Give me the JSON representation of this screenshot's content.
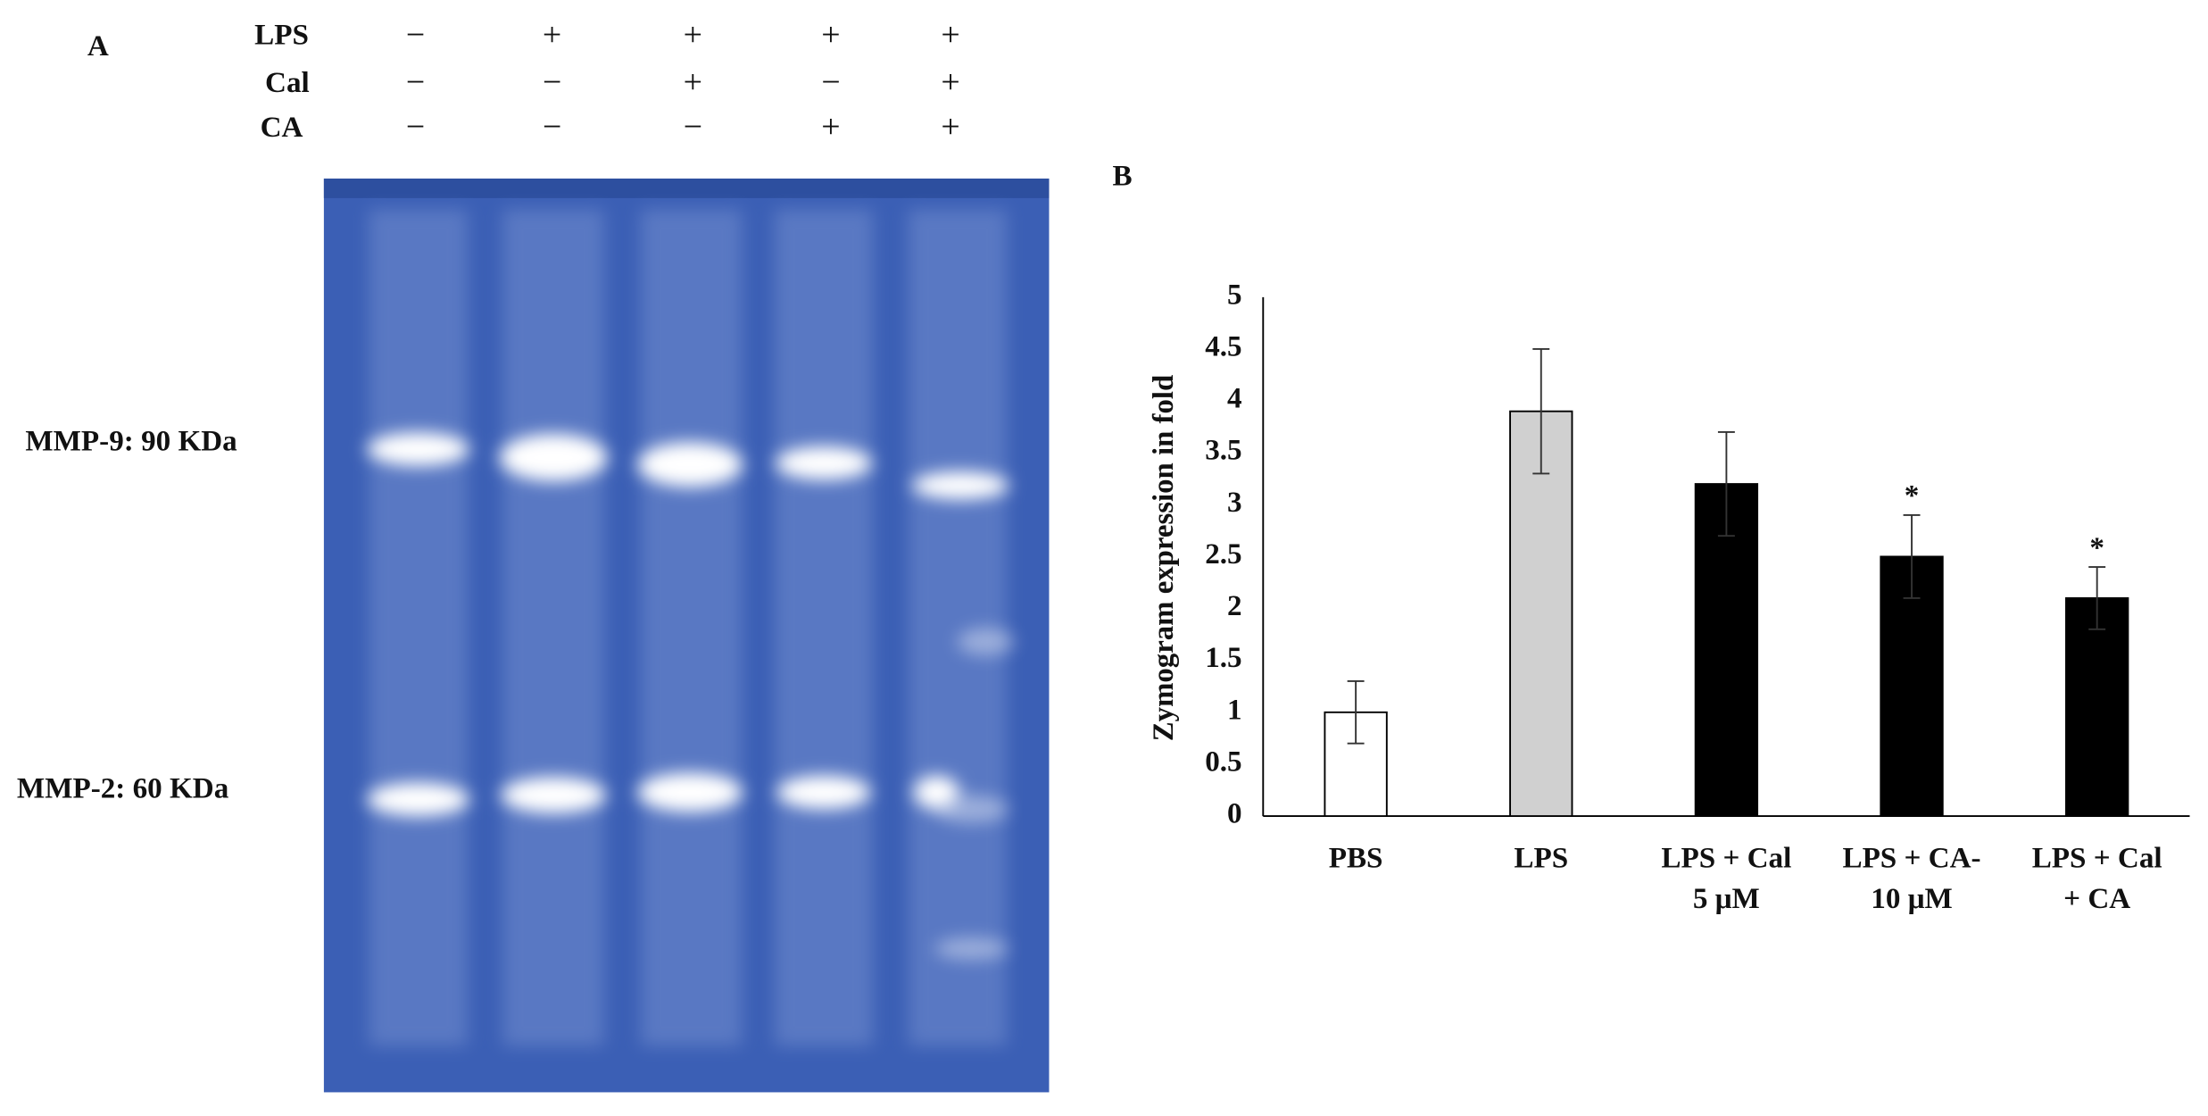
{
  "panel_a": {
    "label": "A",
    "rows": [
      {
        "name": "LPS",
        "signs": [
          "−",
          "+",
          "+",
          "+",
          "+"
        ]
      },
      {
        "name": "Cal",
        "signs": [
          "−",
          "−",
          "+",
          "−",
          "+"
        ]
      },
      {
        "name": "CA",
        "signs": [
          "−",
          "−",
          "−",
          "+",
          "+"
        ]
      }
    ],
    "band_labels": [
      "MMP-9: 90 KDa",
      "MMP-2: 60 KDa"
    ]
  },
  "chart_data": {
    "type": "bar",
    "panel_label": "B",
    "y_label": "Zymogram  expression in fold",
    "categories": [
      [
        "PBS"
      ],
      [
        "LPS"
      ],
      [
        "LPS + Cal",
        "5 μM"
      ],
      [
        "LPS + CA-",
        "10 μM"
      ],
      [
        "LPS + Cal",
        "+ CA"
      ]
    ],
    "values": [
      1,
      3.9,
      3.2,
      2.5,
      2.1
    ],
    "errors": [
      0.3,
      0.6,
      0.5,
      0.4,
      0.3
    ],
    "colors": [
      "#ffffff",
      "#d0d0d0",
      "#000000",
      "#000000",
      "#000000"
    ],
    "value_annotations": [
      null,
      null,
      null,
      "*",
      "*"
    ],
    "ylim": [
      0,
      5
    ],
    "yticks": [
      0,
      0.5,
      1,
      1.5,
      2,
      2.5,
      3,
      3.5,
      4,
      4.5,
      5
    ],
    "grid": false
  }
}
